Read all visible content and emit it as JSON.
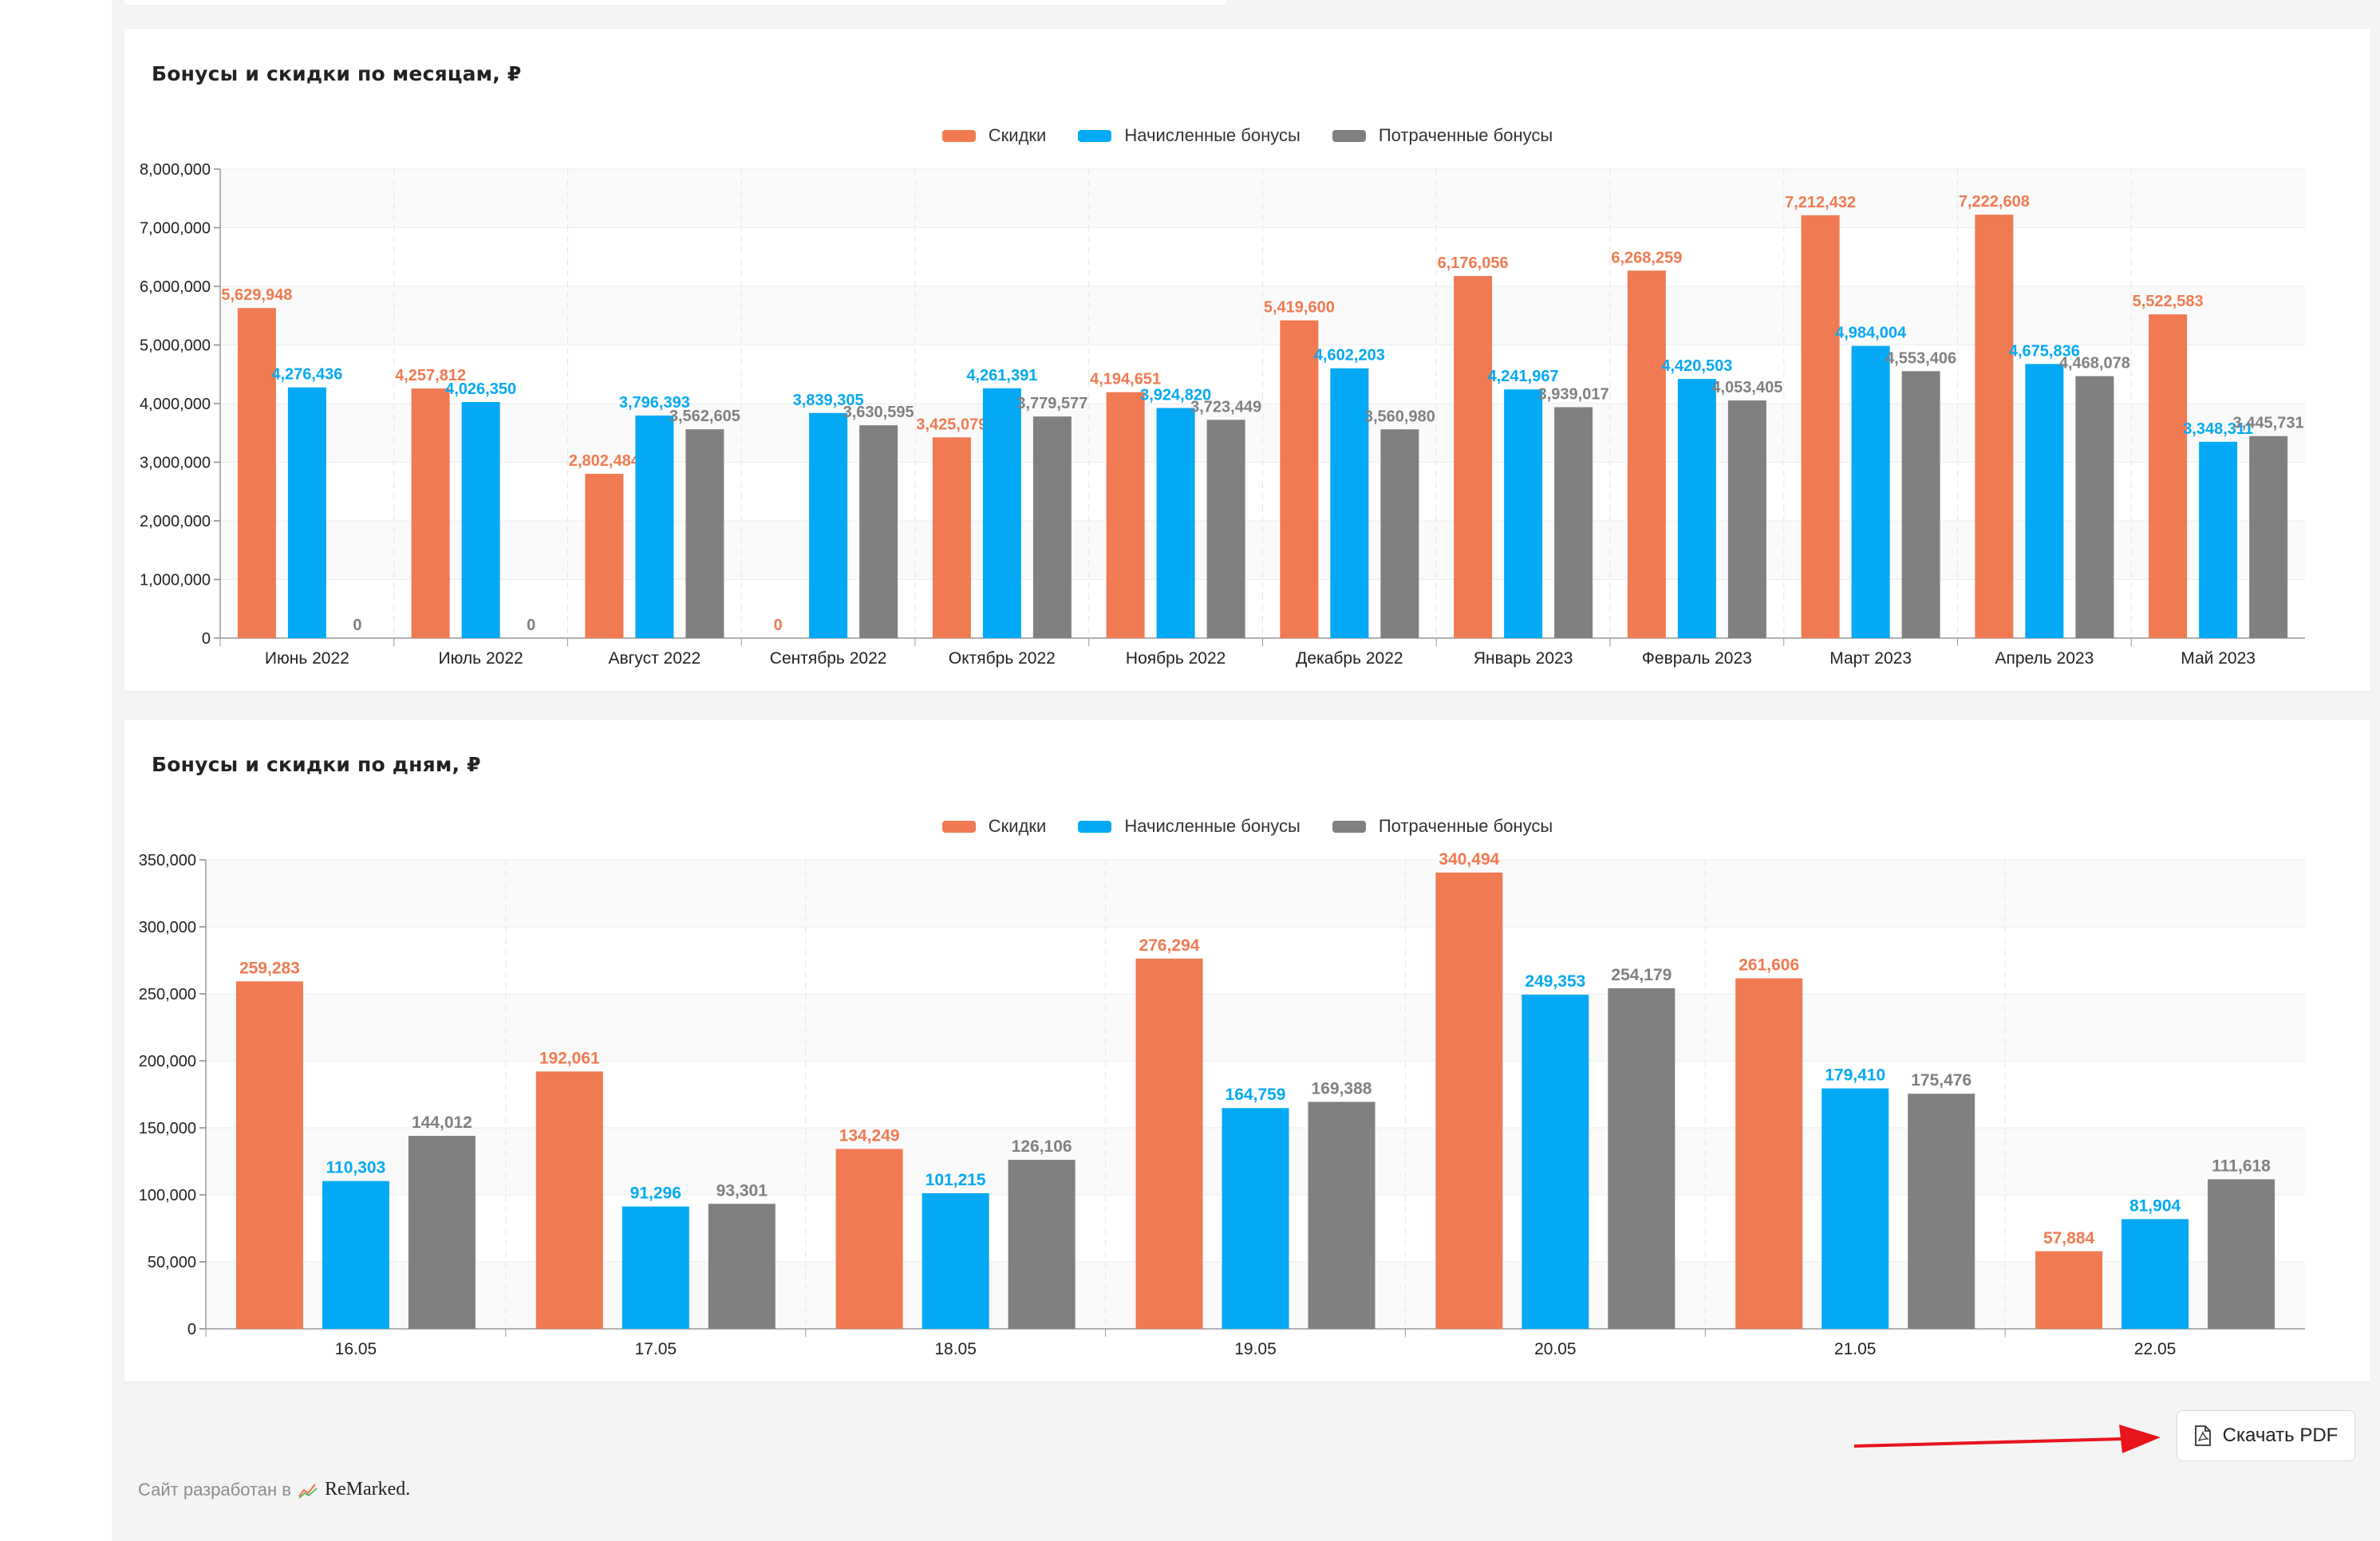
{
  "colors": {
    "discounts": "#f07a52",
    "accrued": "#03a9f4",
    "spent": "#808080",
    "annotation_arrow": "#e8141b"
  },
  "legend": {
    "discounts": "Скидки",
    "accrued": "Начисленные бонусы",
    "spent": "Потраченные бонусы"
  },
  "monthly": {
    "title": "Бонусы и скидки по месяцам, ₽"
  },
  "daily": {
    "title": "Бонусы и скидки по дням, ₽"
  },
  "download_button": {
    "label": "Скачать PDF",
    "icon": "pdf-file-icon"
  },
  "footer": {
    "text": "Сайт разработан в",
    "brand": "ReMarked.",
    "logo_icon": "trend-logo-icon"
  },
  "chart_data": [
    {
      "type": "bar",
      "title": "Бонусы и скидки по месяцам, ₽",
      "categories": [
        "Июнь 2022",
        "Июль 2022",
        "Август 2022",
        "Сентябрь 2022",
        "Октябрь 2022",
        "Ноябрь 2022",
        "Декабрь 2022",
        "Январь 2023",
        "Февраль 2023",
        "Март 2023",
        "Апрель 2023",
        "Май 2023"
      ],
      "series": [
        {
          "name": "Скидки",
          "color": "#f07a52",
          "values": [
            5629948,
            4257812,
            2802484,
            0,
            3425079,
            4194651,
            5419600,
            6176056,
            6268259,
            7212432,
            7222608,
            5522583
          ]
        },
        {
          "name": "Начисленные бонусы",
          "color": "#03a9f4",
          "values": [
            4276436,
            4026350,
            3796393,
            3839305,
            4261391,
            3924820,
            4602203,
            4241967,
            4420503,
            4984004,
            4675836,
            3348311
          ]
        },
        {
          "name": "Потраченные бонусы",
          "color": "#808080",
          "values": [
            0,
            0,
            3562605,
            3630595,
            3779577,
            3723449,
            3560980,
            3939017,
            4053405,
            4553406,
            4468078,
            3445731
          ]
        }
      ],
      "yticks": [
        "0",
        "1,000,000",
        "2,000,000",
        "3,000,000",
        "4,000,000",
        "5,000,000",
        "6,000,000",
        "7,000,000",
        "8,000,000"
      ],
      "ylim": [
        0,
        8000000
      ],
      "legend_position": "top-center",
      "grid": true
    },
    {
      "type": "bar",
      "title": "Бонусы и скидки по дням, ₽",
      "categories": [
        "16.05",
        "17.05",
        "18.05",
        "19.05",
        "20.05",
        "21.05",
        "22.05"
      ],
      "series": [
        {
          "name": "Скидки",
          "color": "#f07a52",
          "values": [
            259283,
            192061,
            134249,
            276294,
            340494,
            261606,
            57884
          ]
        },
        {
          "name": "Начисленные бонусы",
          "color": "#03a9f4",
          "values": [
            110303,
            91296,
            101215,
            164759,
            249353,
            179410,
            81904
          ]
        },
        {
          "name": "Потраченные бонусы",
          "color": "#808080",
          "values": [
            144012,
            93301,
            126106,
            169388,
            254179,
            175476,
            111618
          ]
        }
      ],
      "yticks": [
        "0",
        "50,000",
        "100,000",
        "150,000",
        "200,000",
        "250,000",
        "300,000",
        "350,000"
      ],
      "ylim": [
        0,
        350000
      ],
      "legend_position": "top-center",
      "grid": true
    }
  ]
}
